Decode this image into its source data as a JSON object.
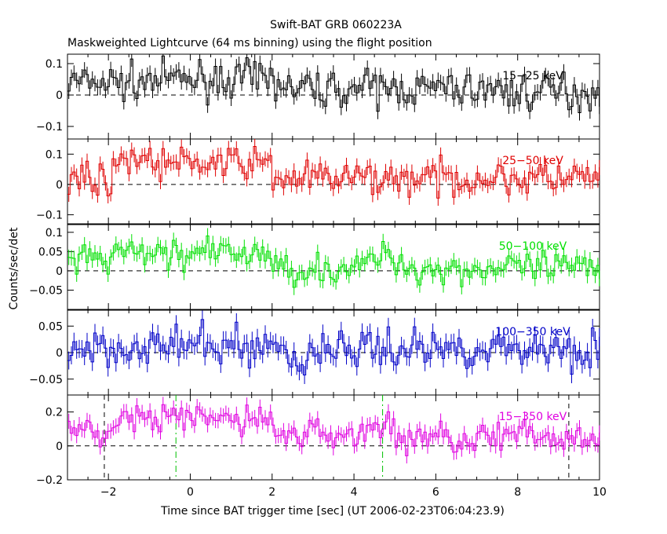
{
  "title": "Swift-BAT GRB 060223A",
  "subtitle": "Maskweighted Lightcurve (64 ms binning) using the flight position",
  "xlabel": "Time since BAT trigger time [sec] (UT 2006-02-23T06:04:23.9)",
  "ylabel": "Counts/sec/det",
  "colors": {
    "axis": "#000000",
    "black": "#000000",
    "red": "#e00000",
    "green": "#00e000",
    "blue": "#0000c8",
    "magenta": "#e000e0",
    "dashed_green": "#00c000"
  },
  "chart_data": {
    "type": "line",
    "xlim": [
      -3,
      10
    ],
    "xticks": [
      -2,
      0,
      2,
      4,
      6,
      8,
      10
    ],
    "xtick_labels": [
      "−2",
      "0",
      "2",
      "4",
      "6",
      "8",
      "10"
    ],
    "bin_width_s": 0.064,
    "panels": [
      {
        "band": "15−25 keV",
        "color": "#000000",
        "ylim": [
          -0.14,
          0.13
        ],
        "yticks": [
          0.1,
          0,
          -0.1
        ],
        "ytick_labels": [
          "0.1",
          "0",
          "−0.1"
        ],
        "segments": [
          {
            "t0": -3,
            "t1": -1,
            "level": 0.04,
            "noise": 0.028
          },
          {
            "t0": -1,
            "t1": 2.2,
            "level": 0.05,
            "noise": 0.028
          },
          {
            "t0": 2.2,
            "t1": 7.5,
            "level": 0.02,
            "noise": 0.028
          },
          {
            "t0": 7.5,
            "t1": 10,
            "level": 0.01,
            "noise": 0.03
          }
        ],
        "errbar": 0.025
      },
      {
        "band": "25−50 keV",
        "color": "#e00000",
        "ylim": [
          -0.13,
          0.15
        ],
        "yticks": [
          0.1,
          0,
          -0.1
        ],
        "ytick_labels": [
          "0.1",
          "0",
          "−0.1"
        ],
        "segments": [
          {
            "t0": -3,
            "t1": -1.8,
            "level": 0.02,
            "noise": 0.028
          },
          {
            "t0": -1.8,
            "t1": -1.0,
            "level": 0.09,
            "noise": 0.025
          },
          {
            "t0": -1.0,
            "t1": 2.0,
            "level": 0.07,
            "noise": 0.025
          },
          {
            "t0": 2.0,
            "t1": 10,
            "level": 0.02,
            "noise": 0.028
          }
        ],
        "errbar": 0.025
      },
      {
        "band": "50−100 keV",
        "color": "#00e000",
        "ylim": [
          -0.1,
          0.12
        ],
        "yticks": [
          0.1,
          0.05,
          0,
          -0.05
        ],
        "ytick_labels": [
          "0.1",
          "0.05",
          "0",
          "−0.05"
        ],
        "segments": [
          {
            "t0": -3,
            "t1": -2,
            "level": 0.025,
            "noise": 0.02
          },
          {
            "t0": -2,
            "t1": 2.0,
            "level": 0.045,
            "noise": 0.02
          },
          {
            "t0": 2.0,
            "t1": 4.3,
            "level": 0.005,
            "noise": 0.02
          },
          {
            "t0": 4.3,
            "t1": 5.2,
            "level": 0.035,
            "noise": 0.02
          },
          {
            "t0": 5.2,
            "t1": 10,
            "level": 0.005,
            "noise": 0.022
          }
        ],
        "errbar": 0.02
      },
      {
        "band": "100−350 keV",
        "color": "#0000c8",
        "ylim": [
          -0.08,
          0.08
        ],
        "yticks": [
          0.05,
          0,
          -0.05
        ],
        "ytick_labels": [
          "0.05",
          "0",
          "−0.05"
        ],
        "segments": [
          {
            "t0": -3,
            "t1": 2.4,
            "level": 0.012,
            "noise": 0.018
          },
          {
            "t0": 2.4,
            "t1": 2.9,
            "level": -0.02,
            "noise": 0.018
          },
          {
            "t0": 2.9,
            "t1": 10,
            "level": 0.008,
            "noise": 0.018
          }
        ],
        "errbar": 0.017
      },
      {
        "band": "15−350 keV",
        "color": "#e000e0",
        "ylim": [
          -0.2,
          0.3
        ],
        "yticks": [
          0.2,
          0,
          -0.2
        ],
        "ytick_labels": [
          "0.2",
          "0",
          "−0.2"
        ],
        "segments": [
          {
            "t0": -3,
            "t1": -1.8,
            "level": 0.08,
            "noise": 0.045
          },
          {
            "t0": -1.8,
            "t1": 2.0,
            "level": 0.16,
            "noise": 0.045
          },
          {
            "t0": 2.0,
            "t1": 4.3,
            "level": 0.07,
            "noise": 0.045
          },
          {
            "t0": 4.3,
            "t1": 5.0,
            "level": 0.11,
            "noise": 0.045
          },
          {
            "t0": 5.0,
            "t1": 10,
            "level": 0.05,
            "noise": 0.05
          }
        ],
        "errbar": 0.045,
        "vlines_black": [
          -2.1,
          9.25
        ],
        "vlines_green": [
          -0.35,
          4.7
        ]
      }
    ]
  }
}
